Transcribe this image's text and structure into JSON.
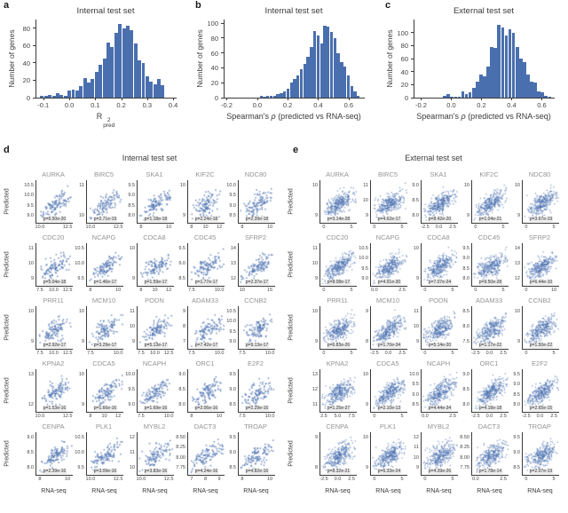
{
  "panel_labels": {
    "a": "a",
    "b": "b",
    "c": "c",
    "d": "d",
    "e": "e"
  },
  "colors": {
    "bar_fill": "#4a6fae",
    "scatter_point": "#4C72B0",
    "spine": "#3a3a3a",
    "tick_text": "#444444",
    "gene_title": "#949494",
    "p_badge_bg": "#eaeaea",
    "p_badge_text": "#333333"
  },
  "chart_data": [
    {
      "id": "a",
      "type": "bar",
      "subtype": "histogram",
      "title": "Internal test set",
      "ylabel": "Number of genes",
      "xlabel": {
        "base": "R",
        "sup": "2",
        "sub": "pred"
      },
      "xlim": [
        -0.13,
        0.41
      ],
      "ylim": [
        0,
        90
      ],
      "xticks": [
        "-0.1",
        "0.0",
        "0.1",
        "0.2",
        "0.3",
        "0.4"
      ],
      "yticks": [
        0,
        20,
        40,
        60,
        80
      ],
      "bin_start": -0.115,
      "bin_width": 0.015,
      "values": [
        2,
        2,
        3,
        2,
        5,
        3,
        2,
        8,
        9,
        8,
        13,
        23,
        17,
        22,
        30,
        38,
        45,
        63,
        58,
        75,
        85,
        80,
        83,
        78,
        62,
        43,
        40,
        25,
        18,
        15,
        22,
        14
      ]
    },
    {
      "id": "b",
      "type": "bar",
      "subtype": "histogram",
      "title": "Internal test set",
      "ylabel": "Number of genes",
      "xlabel": {
        "text": "Spearman's ρ (predicted vs RNA-seq)"
      },
      "xlim": [
        -0.22,
        0.7
      ],
      "ylim": [
        0,
        105
      ],
      "xticks": [
        "-0.2",
        "0.0",
        "0.2",
        "0.4",
        "0.6"
      ],
      "yticks": [
        0,
        20,
        40,
        60,
        80,
        100
      ],
      "bin_start": 0.01,
      "bin_width": 0.022,
      "values": [
        2,
        1,
        2,
        3,
        3,
        5,
        6,
        8,
        12,
        20,
        25,
        30,
        38,
        45,
        55,
        68,
        90,
        84,
        73,
        97,
        95,
        88,
        80,
        60,
        48,
        42,
        30,
        15,
        8,
        3
      ]
    },
    {
      "id": "c",
      "type": "bar",
      "subtype": "histogram",
      "title": "External test set",
      "ylabel": "Number of genes",
      "xlabel": {
        "text": "Spearman's ρ (predicted vs RNA-seq)"
      },
      "xlim": [
        -0.25,
        0.68
      ],
      "ylim": [
        0,
        120
      ],
      "xticks": [
        "-0.2",
        "0.0",
        "0.2",
        "0.4",
        "0.6"
      ],
      "yticks": [
        0,
        20,
        40,
        60,
        80,
        100
      ],
      "bin_start": -0.06,
      "bin_width": 0.024,
      "values": [
        3,
        5,
        2,
        1,
        2,
        10,
        5,
        8,
        15,
        25,
        35,
        33,
        48,
        78,
        77,
        112,
        108,
        95,
        105,
        100,
        78,
        60,
        55,
        35,
        25,
        23,
        10,
        8,
        3,
        2
      ]
    },
    {
      "id": "d",
      "type": "scatter",
      "title": "Internal test set",
      "ylabel": "Predicted",
      "xlabel": "RNA-seq",
      "n_points": 110,
      "cells": [
        {
          "gene": "AURKA",
          "p": "p=6.50e-20",
          "yticks": [
            "10.5",
            "10.0",
            "9.5",
            "9.0"
          ],
          "xticks": [
            "10.0",
            "12.5"
          ]
        },
        {
          "gene": "BIRC5",
          "p": "p=2.71e-19",
          "yticks": [
            "11",
            "10"
          ],
          "xticks": [
            "10.0",
            "12.5"
          ]
        },
        {
          "gene": "SKA1",
          "p": "p=1.18e-18",
          "yticks": [
            "9.5",
            "9.0",
            "8.5",
            "8.0"
          ],
          "xticks": [
            "8",
            "10"
          ]
        },
        {
          "gene": "KIF2C",
          "p": "p=2.24e-18",
          "yticks": [
            "10",
            "9"
          ],
          "xticks": [
            "8",
            "10",
            "12"
          ]
        },
        {
          "gene": "NDC80",
          "p": "p=2.39e-18",
          "yticks": [
            "10.0",
            "9.5",
            "9.0",
            "8.5"
          ],
          "xticks": [
            "8",
            "10"
          ]
        },
        {
          "gene": "CDC20",
          "p": "p=5.04e-18",
          "yticks": [
            "11",
            "10",
            "9"
          ],
          "xticks": [
            "7.5",
            "10.0",
            "12.5"
          ]
        },
        {
          "gene": "NCAPG",
          "p": "p=1.46e-17",
          "yticks": [
            "10.5",
            "10.0",
            "9.5"
          ],
          "xticks": [
            "8",
            "10"
          ]
        },
        {
          "gene": "CDCA8",
          "p": "p=1.59e-17",
          "yticks": [
            "10",
            "9"
          ],
          "xticks": [
            "8",
            "10",
            "12"
          ]
        },
        {
          "gene": "CDC45",
          "p": "p=1.77e-17",
          "yticks": [
            "9.5",
            "9.0",
            "8.5"
          ],
          "xticks": [
            "7.5",
            "10.0"
          ]
        },
        {
          "gene": "SFRP2",
          "p": "p=2.37e-17",
          "yticks": [
            "14",
            "13",
            "12"
          ],
          "xticks": [
            "10",
            "15"
          ]
        },
        {
          "gene": "PRR11",
          "p": "p=2.92e-17",
          "yticks": [
            "10",
            "9"
          ],
          "xticks": [
            "7.5",
            "10.0",
            "12.5"
          ]
        },
        {
          "gene": "MCM10",
          "p": "p=3.29e-17",
          "yticks": [
            "10",
            "9"
          ],
          "xticks": [
            "7.5",
            "10.0"
          ]
        },
        {
          "gene": "PODN",
          "p": "p=5.13e-17",
          "yticks": [
            "11",
            "10",
            "9"
          ],
          "xticks": [
            "7.5",
            "10.0",
            "12.5"
          ]
        },
        {
          "gene": "ADAM33",
          "p": "p=7.42e-17",
          "yticks": [
            "9",
            "8",
            "7"
          ],
          "xticks": [
            "7.5",
            "10.0"
          ]
        },
        {
          "gene": "CCNB2",
          "p": "p=9.13e-17",
          "yticks": [
            "10.5",
            "10.0",
            "9.5",
            "9.0"
          ],
          "xticks": [
            "7.5",
            "10.0"
          ]
        },
        {
          "gene": "KPNA2",
          "p": "p=1.53e-16",
          "yticks": [
            "13",
            "12"
          ],
          "xticks": [
            "10.0",
            "12.5"
          ]
        },
        {
          "gene": "CDCA5",
          "p": "p=1.66e-16",
          "yticks": [
            "10",
            "9"
          ],
          "xticks": [
            "8",
            "10",
            "12"
          ]
        },
        {
          "gene": "NCAPH",
          "p": "p=1.69e-16",
          "yticks": [
            "10.0",
            "9.5",
            "9.0"
          ],
          "xticks": [
            "7.5",
            "10.0"
          ]
        },
        {
          "gene": "ORC1",
          "p": "p=2.06e-16",
          "yticks": [
            "9.0",
            "8.5",
            "8.0"
          ],
          "xticks": [
            "8",
            "10"
          ]
        },
        {
          "gene": "E2F2",
          "p": "p=2.29e-16",
          "yticks": [
            "9.5",
            "9.0",
            "8.5"
          ],
          "xticks": [
            "7.5",
            "10.0"
          ]
        },
        {
          "gene": "CENPA",
          "p": "p=2.39e-16",
          "yticks": [
            "9.0",
            "8.5",
            "8.0"
          ],
          "xticks": [
            "8",
            "10"
          ]
        },
        {
          "gene": "PLK1",
          "p": "p=3.09e-16",
          "yticks": [
            "10.5",
            "10.0",
            "9.5"
          ],
          "xticks": [
            "10.0",
            "12.5"
          ]
        },
        {
          "gene": "MYBL2",
          "p": "p=3.83e-16",
          "yticks": [
            "12",
            "11",
            "10"
          ],
          "xticks": [
            "10.0",
            "12.5"
          ]
        },
        {
          "gene": "DACT3",
          "p": "p=4.24e-16",
          "yticks": [
            "8.50",
            "8.25",
            "8.00",
            "7.75"
          ],
          "xticks": [
            "7",
            "8",
            "9"
          ]
        },
        {
          "gene": "TROAP",
          "p": "p=4.82e-16",
          "yticks": [
            "9.5",
            "9.0",
            "8.5"
          ],
          "xticks": [
            "8",
            "10"
          ]
        }
      ]
    },
    {
      "id": "e",
      "type": "scatter",
      "title": "External test set",
      "ylabel": "Predicted",
      "xlabel": "RNA-seq",
      "n_points": 300,
      "cells": [
        {
          "gene": "AURKA",
          "p": "p=3.14e-28",
          "yticks": [
            "10",
            "9"
          ],
          "xticks": [
            "0",
            "5"
          ]
        },
        {
          "gene": "BIRC5",
          "p": "p=4.62e-17",
          "yticks": [
            "11",
            "10",
            "9"
          ],
          "xticks": [
            "0",
            "5"
          ]
        },
        {
          "gene": "SKA1",
          "p": "p=8.42e-20",
          "yticks": [
            "9.0",
            "8.5",
            "8.0"
          ],
          "xticks": [
            "-2.5",
            "0.0",
            "2.5"
          ]
        },
        {
          "gene": "KIF2C",
          "p": "p=1.04e-21",
          "yticks": [
            "10",
            "9"
          ],
          "xticks": [
            "0",
            "5"
          ]
        },
        {
          "gene": "NDC80",
          "p": "p=3.67e-19",
          "yticks": [
            "10",
            "9"
          ],
          "xticks": [
            "0",
            "5"
          ]
        },
        {
          "gene": "CDC20",
          "p": "p=8.08e-17",
          "yticks": [
            "11",
            "10",
            "9"
          ],
          "xticks": [
            "0",
            "5"
          ]
        },
        {
          "gene": "NCAPG",
          "p": "p=4.91e-30",
          "yticks": [
            "10.5",
            "10.0",
            "9.5",
            "9.0"
          ],
          "xticks": [
            "0.0",
            "2.5"
          ]
        },
        {
          "gene": "CDCA8",
          "p": "p=7.07e-24",
          "yticks": [
            "10",
            "9"
          ],
          "xticks": [
            "0",
            "5"
          ]
        },
        {
          "gene": "CDC45",
          "p": "p=9.50e-28",
          "yticks": [
            "9.5",
            "9.0",
            "8.5",
            "8.0"
          ],
          "xticks": [
            "0",
            "5"
          ]
        },
        {
          "gene": "SFRP2",
          "p": "p=6.44e-10",
          "yticks": [
            "14",
            "13",
            "12"
          ],
          "xticks": [
            "0",
            "10"
          ]
        },
        {
          "gene": "PRR11",
          "p": "p=6.83e-26",
          "yticks": [
            "10",
            "9"
          ],
          "xticks": [
            "0",
            "5"
          ]
        },
        {
          "gene": "MCM10",
          "p": "p=1.70e-34",
          "yticks": [
            "9",
            "8"
          ],
          "xticks": [
            "-2.5",
            "0.0",
            "2.5"
          ]
        },
        {
          "gene": "PODN",
          "p": "p=5.14e-20",
          "yticks": [
            "11",
            "10",
            "9"
          ],
          "xticks": [
            "0",
            "5"
          ]
        },
        {
          "gene": "ADAM33",
          "p": "p=1.17e-22",
          "yticks": [
            "8.5",
            "8.0",
            "7.5"
          ],
          "xticks": [
            "-2.5",
            "0.0",
            "2.5"
          ]
        },
        {
          "gene": "CCNB2",
          "p": "p=1.50e-22",
          "yticks": [
            "10",
            "9"
          ],
          "xticks": [
            "0",
            "5"
          ]
        },
        {
          "gene": "KPNA2",
          "p": "p=1.25e-27",
          "yticks": [
            "13",
            "12",
            "11"
          ],
          "xticks": [
            "2.5",
            "5.0",
            "7.5"
          ]
        },
        {
          "gene": "CDCA5",
          "p": "p=2.10e-13",
          "yticks": [
            "10",
            "9"
          ],
          "xticks": [
            "0",
            "5"
          ]
        },
        {
          "gene": "NCAPH",
          "p": "p=4.44e-34",
          "yticks": [
            "10.0",
            "9.5",
            "9.0",
            "8.5"
          ],
          "xticks": [
            "0.0",
            "2.5"
          ]
        },
        {
          "gene": "ORC1",
          "p": "p=4.18e-18",
          "yticks": [
            "9.0",
            "8.5",
            "8.0"
          ],
          "xticks": [
            "-2.5",
            "0.0",
            "2.5"
          ]
        },
        {
          "gene": "E2F2",
          "p": "p=2.65e-15",
          "yticks": [
            "9.5",
            "9.0",
            "8.5",
            "8.0"
          ],
          "xticks": [
            "-2.5",
            "0.0",
            "2.5"
          ]
        },
        {
          "gene": "CENPA",
          "p": "p=8.32e-21",
          "yticks": [
            "9",
            "8"
          ],
          "xticks": [
            "-2.5",
            "0.0",
            "2.5"
          ]
        },
        {
          "gene": "PLK1",
          "p": "p=6.33e-24",
          "yticks": [
            "10",
            "9"
          ],
          "xticks": [
            "0",
            "5"
          ]
        },
        {
          "gene": "MYBL2",
          "p": "p=4.39e-26",
          "yticks": [
            "12",
            "11",
            "10",
            "9"
          ],
          "xticks": [
            "0",
            "5"
          ]
        },
        {
          "gene": "DACT3",
          "p": "p=1.78e-14",
          "yticks": [
            "8.50",
            "8.25",
            "8.00",
            "7.75"
          ],
          "xticks": [
            "0.0",
            "2.5"
          ]
        },
        {
          "gene": "TROAP",
          "p": "p=2.07e-19",
          "yticks": [
            "9.5",
            "9.0",
            "8.5"
          ],
          "xticks": [
            "0",
            "5"
          ]
        }
      ]
    }
  ]
}
